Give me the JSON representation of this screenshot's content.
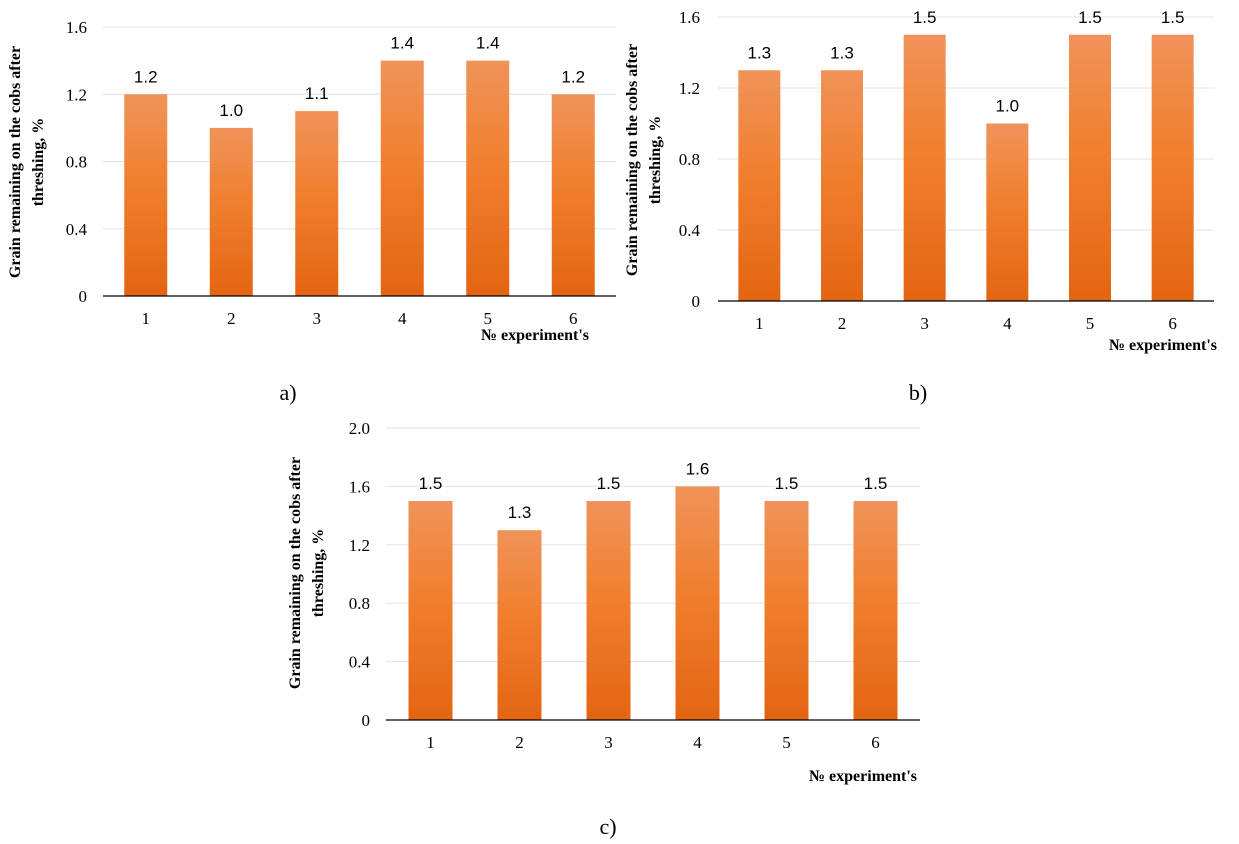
{
  "chart_data": [
    {
      "type": "bar",
      "panel": "a)",
      "categories": [
        "1",
        "2",
        "3",
        "4",
        "5",
        "6"
      ],
      "values": [
        1.2,
        1.0,
        1.1,
        1.4,
        1.4,
        1.2
      ],
      "value_labels": [
        "1.2",
        "1.0",
        "1.1",
        "1.4",
        "1.4",
        "1.2"
      ],
      "ylim": [
        0,
        1.6
      ],
      "yticks": [
        0,
        0.4,
        0.8,
        1.2,
        1.6
      ],
      "ytick_labels": [
        "0",
        "0.4",
        "0.8",
        "1.2",
        "1.6"
      ],
      "ylabel_line1": "Grain remaining on the cobs after",
      "ylabel_line2": "threshing, %",
      "xlabel": "№ experiment's",
      "grid": true
    },
    {
      "type": "bar",
      "panel": "b)",
      "categories": [
        "1",
        "2",
        "3",
        "4",
        "5",
        "6"
      ],
      "values": [
        1.3,
        1.3,
        1.5,
        1.0,
        1.5,
        1.5
      ],
      "value_labels": [
        "1.3",
        "1.3",
        "1.5",
        "1.0",
        "1.5",
        "1.5"
      ],
      "ylim": [
        0,
        1.6
      ],
      "yticks": [
        0,
        0.4,
        0.8,
        1.2,
        1.6
      ],
      "ytick_labels": [
        "0",
        "0.4",
        "0.8",
        "1.2",
        "1.6"
      ],
      "ylabel_line1": "Grain remaining on the cobs after",
      "ylabel_line2": "threshing, %",
      "xlabel": "№ experiment's",
      "grid": true
    },
    {
      "type": "bar",
      "panel": "c)",
      "categories": [
        "1",
        "2",
        "3",
        "4",
        "5",
        "6"
      ],
      "values": [
        1.5,
        1.3,
        1.5,
        1.6,
        1.5,
        1.5
      ],
      "value_labels": [
        "1.5",
        "1.3",
        "1.5",
        "1.6",
        "1.5",
        "1.5"
      ],
      "ylim": [
        0,
        2.0
      ],
      "yticks": [
        0,
        0.4,
        0.8,
        1.2,
        1.6,
        2.0
      ],
      "ytick_labels": [
        "0",
        "0.4",
        "0.8",
        "1.2",
        "1.6",
        "2.0"
      ],
      "ylabel_line1": "Grain remaining on the cobs after",
      "ylabel_line2": "threshing, %",
      "xlabel": "№ experiment's",
      "grid": true
    }
  ],
  "colors": {
    "bar_top": "#f0935a",
    "bar_mid": "#f07f2e",
    "bar_bottom": "#e36512"
  }
}
